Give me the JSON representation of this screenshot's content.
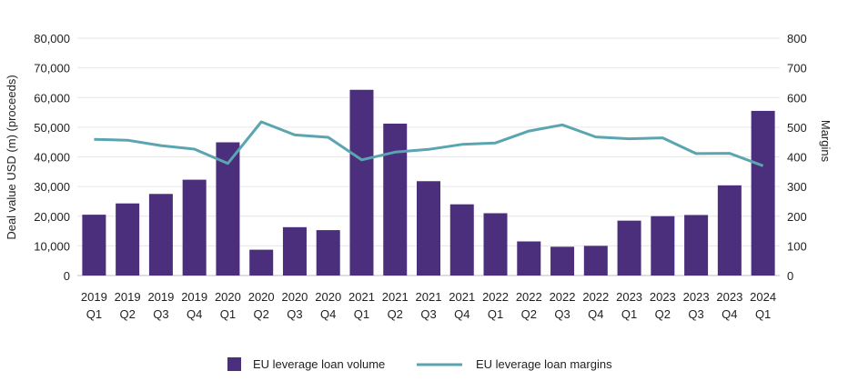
{
  "chart_data": {
    "type": "bar",
    "categories": [
      [
        "2019",
        "Q1"
      ],
      [
        "2019",
        "Q2"
      ],
      [
        "2019",
        "Q3"
      ],
      [
        "2019",
        "Q4"
      ],
      [
        "2020",
        "Q1"
      ],
      [
        "2020",
        "Q2"
      ],
      [
        "2020",
        "Q3"
      ],
      [
        "2020",
        "Q4"
      ],
      [
        "2021",
        "Q1"
      ],
      [
        "2021",
        "Q2"
      ],
      [
        "2021",
        "Q3"
      ],
      [
        "2021",
        "Q4"
      ],
      [
        "2022",
        "Q1"
      ],
      [
        "2022",
        "Q2"
      ],
      [
        "2022",
        "Q3"
      ],
      [
        "2022",
        "Q4"
      ],
      [
        "2023",
        "Q1"
      ],
      [
        "2023",
        "Q2"
      ],
      [
        "2023",
        "Q3"
      ],
      [
        "2023",
        "Q4"
      ],
      [
        "2024",
        "Q1"
      ]
    ],
    "series": [
      {
        "name": "EU leverage loan volume",
        "type": "bar",
        "axis": "left",
        "color": "#4b2f7c",
        "values": [
          20500,
          24300,
          27500,
          32300,
          44900,
          8700,
          16300,
          15300,
          62600,
          51200,
          31800,
          24000,
          21000,
          11500,
          9700,
          10000,
          18500,
          20000,
          20400,
          30400,
          55500
        ]
      },
      {
        "name": "EU leverage loan margins",
        "type": "line",
        "axis": "right",
        "color": "#5aa5b0",
        "values": [
          459,
          456,
          438,
          426,
          378,
          518,
          474,
          466,
          390,
          416,
          425,
          442,
          447,
          487,
          508,
          467,
          461,
          464,
          411,
          412,
          370
        ]
      }
    ],
    "ylabel": "Deal value USD (m) (proceeds)",
    "y2label": "Margins",
    "ylim": [
      0,
      80000
    ],
    "y2lim": [
      0,
      800
    ],
    "yticks": [
      "0",
      "10,000",
      "20,000",
      "30,000",
      "40,000",
      "50,000",
      "60,000",
      "70,000",
      "80,000"
    ],
    "y2ticks": [
      "0",
      "100",
      "200",
      "300",
      "400",
      "500",
      "600",
      "700",
      "800"
    ],
    "grid": true,
    "legend_position": "bottom"
  }
}
